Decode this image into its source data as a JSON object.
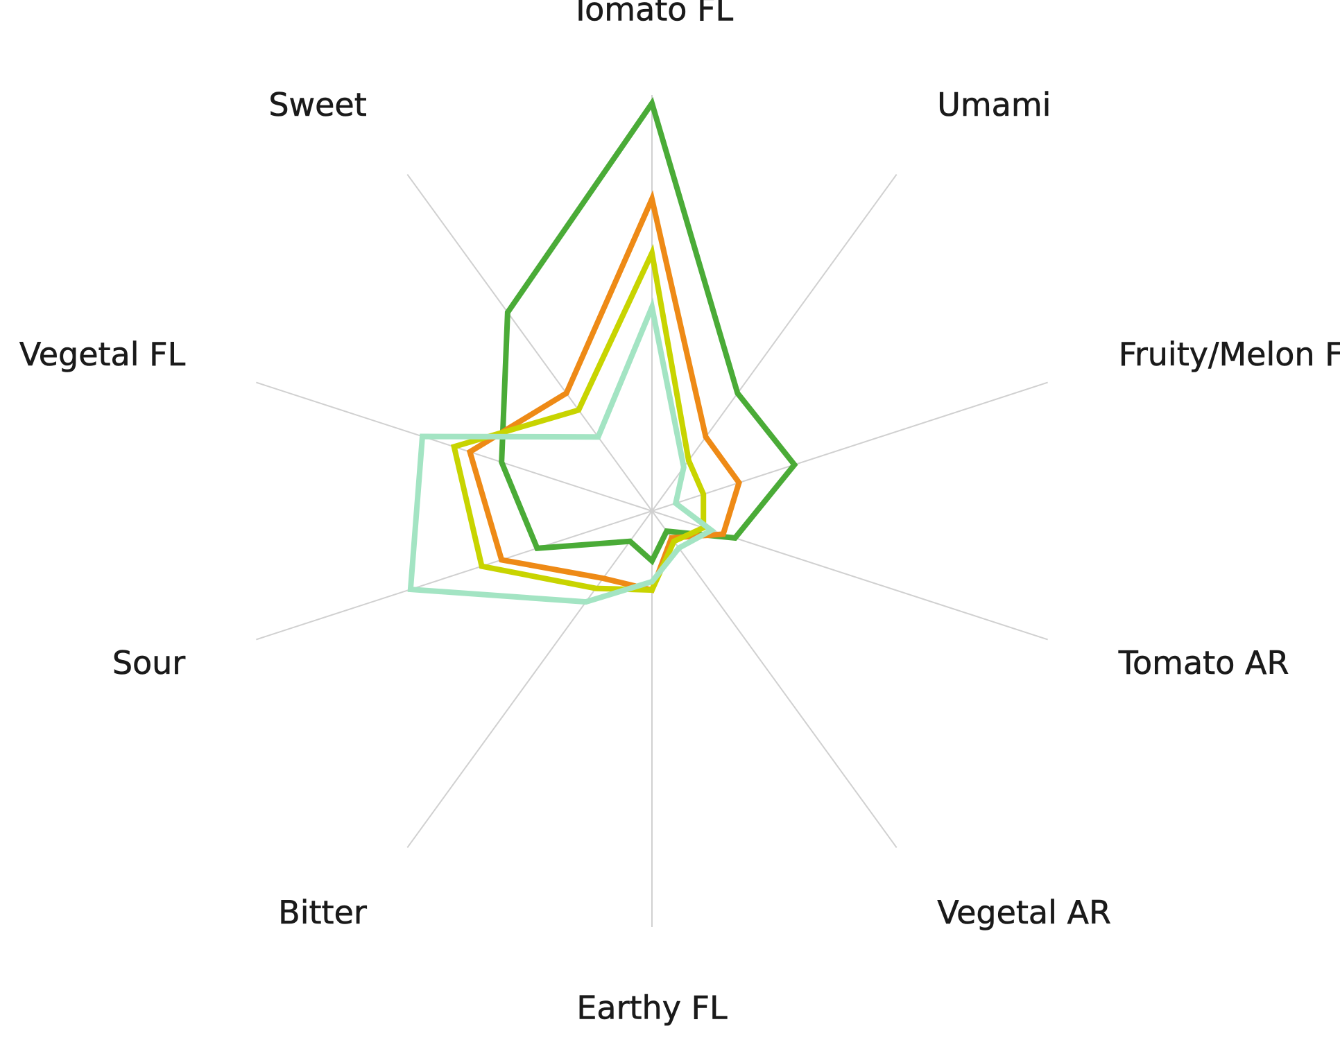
{
  "chart_data": {
    "type": "radar",
    "axes": [
      "Tomato FL",
      "Umami",
      "Fruity/Melon FL",
      "Tomato AR",
      "Vegetal AR",
      "Earthy FL",
      "Bitter",
      "Sour",
      "Vegetal FL",
      "Sweet"
    ],
    "range": [
      0,
      100
    ],
    "grid": "spokes",
    "legend": "none",
    "series": [
      {
        "color": "#4aab37",
        "values": [
          98,
          35,
          36,
          21,
          6,
          12,
          9,
          29,
          38,
          59
        ]
      },
      {
        "color": "#ee8a16",
        "values": [
          75,
          22,
          22,
          18,
          8,
          19,
          20,
          38,
          46,
          35
        ]
      },
      {
        "color": "#c8d400",
        "values": [
          62,
          15,
          13,
          13,
          9,
          19,
          23,
          43,
          50,
          30
        ]
      },
      {
        "color": "#a3e4c3",
        "values": [
          49,
          13,
          6,
          15,
          11,
          17,
          27,
          61,
          58,
          22
        ]
      }
    ]
  }
}
